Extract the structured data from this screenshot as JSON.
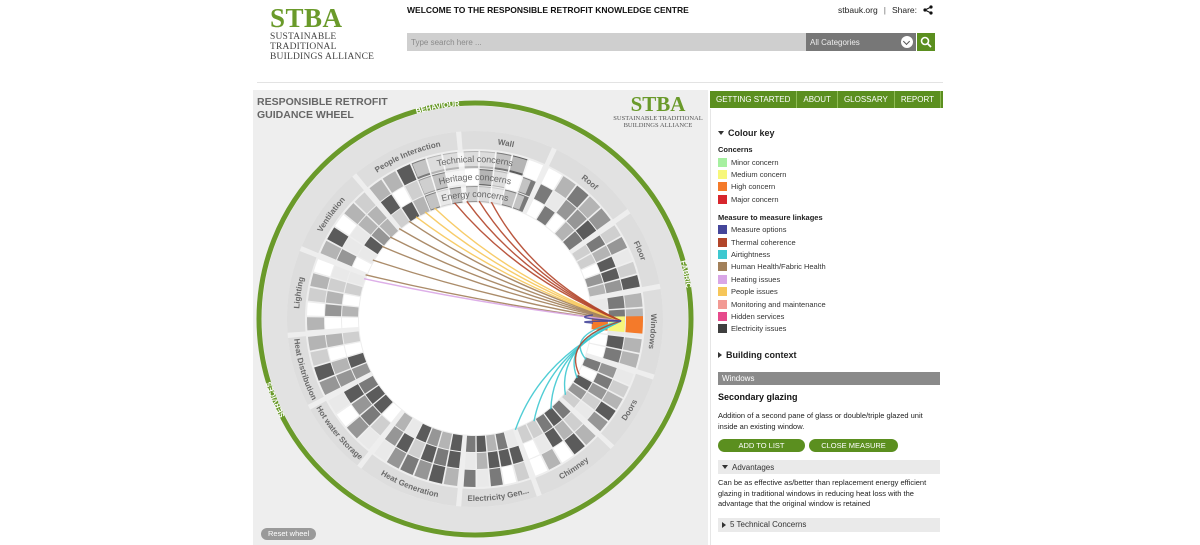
{
  "header": {
    "logo_mark": "STBA",
    "logo_sub_line1": "SUSTAINABLE TRADITIONAL",
    "logo_sub_line2": "BUILDINGS ALLIANCE",
    "welcome": "WELCOME TO THE RESPONSIBLE RETROFIT KNOWLEDGE CENTRE",
    "site_link": "stbauk.org",
    "separator": "|",
    "share_label": "Share:",
    "search_placeholder": "Type search here ...",
    "category": "All Categories"
  },
  "wheel": {
    "title_line1": "RESPONSIBLE RETROFIT",
    "title_line2": "GUIDANCE WHEEL",
    "logo_mark": "STBA",
    "logo_sub_line1": "SUSTAINABLE TRADITIONAL",
    "logo_sub_line2": "BUILDINGS ALLIANCE",
    "groups": [
      "BEHAVIOUR",
      "FABRIC",
      "SERVICES"
    ],
    "segments": [
      "People Interaction",
      "Wall",
      "Roof",
      "Floor",
      "Windows",
      "Doors",
      "Chimney",
      "Electricity Gen...",
      "Heat Generation",
      "Hot water Storage",
      "Heat Distribution",
      "Lighting",
      "Ventilation"
    ],
    "ring_labels": [
      "Technical concerns",
      "Heritage concerns",
      "Energy concerns"
    ],
    "reset_label": "Reset wheel"
  },
  "tabs": [
    "GETTING STARTED",
    "ABOUT",
    "GLOSSARY",
    "REPORT"
  ],
  "colour_key": {
    "title": "Colour key",
    "concerns_heading": "Concerns",
    "concerns": [
      {
        "label": "Minor concern",
        "color": "#a6f0a0"
      },
      {
        "label": "Medium concern",
        "color": "#f7f77a"
      },
      {
        "label": "High concern",
        "color": "#f47a2a"
      },
      {
        "label": "Major concern",
        "color": "#d7262d"
      }
    ],
    "linkages_heading": "Measure to measure linkages",
    "linkages": [
      {
        "label": "Measure options",
        "color": "#45469a"
      },
      {
        "label": "Thermal coherence",
        "color": "#b2452a"
      },
      {
        "label": "Airtightness",
        "color": "#3ec8d0"
      },
      {
        "label": "Human Health/Fabric Health",
        "color": "#a2805a"
      },
      {
        "label": "Heating issues",
        "color": "#d9a6e6"
      },
      {
        "label": "People issues",
        "color": "#f6c65a"
      },
      {
        "label": "Monitoring and maintenance",
        "color": "#f29a94"
      },
      {
        "label": "Hidden services",
        "color": "#e64a8c"
      },
      {
        "label": "Electricity issues",
        "color": "#3f3f3f"
      }
    ]
  },
  "building_context": "Building context",
  "measure": {
    "crumb": "Windows",
    "title": "Secondary glazing",
    "description": "Addition of a second pane of glass or double/triple glazed unit inside an existing window.",
    "add_label": "ADD TO LIST",
    "close_label": "CLOSE MEASURE",
    "advantages_label": "Advantages",
    "advantages_text": "Can be as effective as/better than replacement energy efficient glazing in traditional windows in reducing heat loss with the advantage that the original window is retained",
    "concerns_label": "5 Technical Concerns"
  }
}
